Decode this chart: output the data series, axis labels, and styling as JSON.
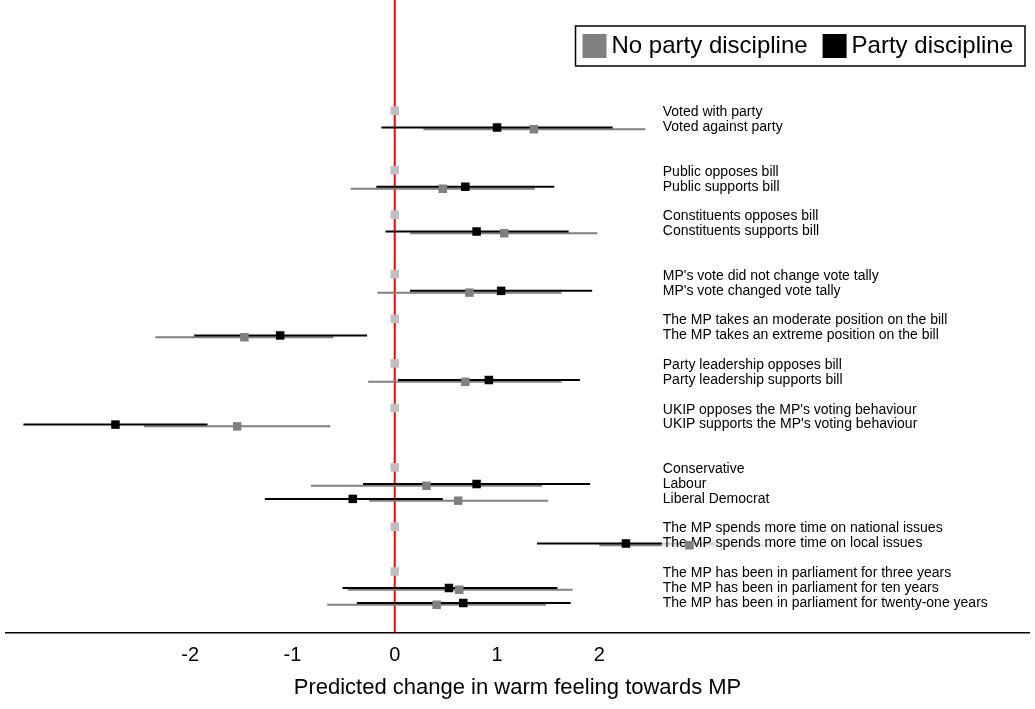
{
  "chart_data": {
    "type": "scatter",
    "orientation": "horizontal",
    "xlabel": "Predicted change in warm feeling towards MP",
    "categories": [
      "Voted with party",
      "Voted against party",
      null,
      null,
      "Public opposes bill",
      "Public supports bill",
      null,
      "Constituents opposes bill",
      "Constituents supports bill",
      null,
      null,
      "MP's vote did not change vote tally",
      "MP's vote changed vote tally",
      null,
      "The MP takes an moderate position on the bill",
      "The MP takes an extreme position on the bill",
      null,
      "Party leadership opposes bill",
      "Party leadership supports bill",
      null,
      "UKIP opposes the MP's voting behaviour",
      "UKIP supports the MP's voting behaviour",
      null,
      null,
      "Conservative",
      "Labour",
      "Liberal Democrat",
      null,
      "The MP spends more time on national issues",
      "The MP spends more time on local issues",
      null,
      "The MP has been in parliament for three years",
      "The MP has been in parliament for ten years",
      "The MP has been in parliament for twenty-one years",
      null
    ],
    "series": [
      {
        "name": "No party discipline",
        "color": "#808080",
        "values": [
          null,
          1.36,
          null,
          null,
          null,
          0.47,
          null,
          null,
          1.07,
          null,
          null,
          null,
          0.73,
          null,
          null,
          -1.47,
          null,
          null,
          0.69,
          null,
          null,
          -1.54,
          null,
          null,
          null,
          0.31,
          0.62,
          null,
          null,
          2.88,
          null,
          null,
          0.63,
          0.41,
          null
        ],
        "errors": [
          null,
          [
            0.28,
            2.45
          ],
          null,
          null,
          null,
          [
            -0.43,
            1.37
          ],
          null,
          null,
          [
            0.15,
            1.98
          ],
          null,
          null,
          null,
          [
            -0.17,
            1.63
          ],
          null,
          null,
          [
            -2.34,
            -0.6
          ],
          null,
          null,
          [
            -0.26,
            1.63
          ],
          null,
          null,
          [
            -2.45,
            -0.63
          ],
          null,
          null,
          null,
          [
            -0.82,
            1.44
          ],
          [
            -0.25,
            1.5
          ],
          null,
          null,
          [
            2.0,
            3.76
          ],
          null,
          null,
          [
            -0.46,
            1.74
          ],
          [
            -0.66,
            1.48
          ],
          null
        ]
      },
      {
        "name": "Party discipline",
        "color": "#000000",
        "values": [
          null,
          1.0,
          null,
          null,
          null,
          0.69,
          null,
          null,
          0.8,
          null,
          null,
          null,
          1.04,
          null,
          null,
          -1.12,
          null,
          null,
          0.92,
          null,
          null,
          -2.73,
          null,
          null,
          null,
          0.8,
          -0.41,
          null,
          null,
          2.26,
          null,
          null,
          0.53,
          0.67,
          null
        ],
        "errors": [
          null,
          [
            -0.13,
            2.13
          ],
          null,
          null,
          null,
          [
            -0.18,
            1.56
          ],
          null,
          null,
          [
            -0.09,
            1.7
          ],
          null,
          null,
          null,
          [
            0.15,
            1.93
          ],
          null,
          null,
          [
            -1.96,
            -0.27
          ],
          null,
          null,
          [
            0.03,
            1.81
          ],
          null,
          null,
          [
            -3.63,
            -1.83
          ],
          null,
          null,
          null,
          [
            -0.31,
            1.91
          ],
          [
            -1.27,
            0.47
          ],
          null,
          null,
          [
            1.39,
            3.13
          ],
          null,
          null,
          [
            -0.51,
            1.59
          ],
          [
            -0.37,
            1.72
          ],
          null
        ]
      },
      {
        "color": "#c0c0c0",
        "values": [
          0,
          null,
          null,
          null,
          0,
          null,
          null,
          0,
          null,
          null,
          null,
          0,
          null,
          null,
          0,
          null,
          null,
          0,
          null,
          null,
          0,
          null,
          null,
          null,
          0,
          null,
          null,
          null,
          0,
          null,
          null,
          0,
          null,
          null,
          null
        ]
      }
    ],
    "xlim": [
      -3.8,
      6.2
    ],
    "xticks": [
      -2,
      -1,
      0,
      1,
      2
    ],
    "ref_lines": [
      {
        "axis": "x",
        "value": 0,
        "color": "#ff0000"
      }
    ],
    "marker": "square",
    "grid": false,
    "legend": "top right"
  }
}
